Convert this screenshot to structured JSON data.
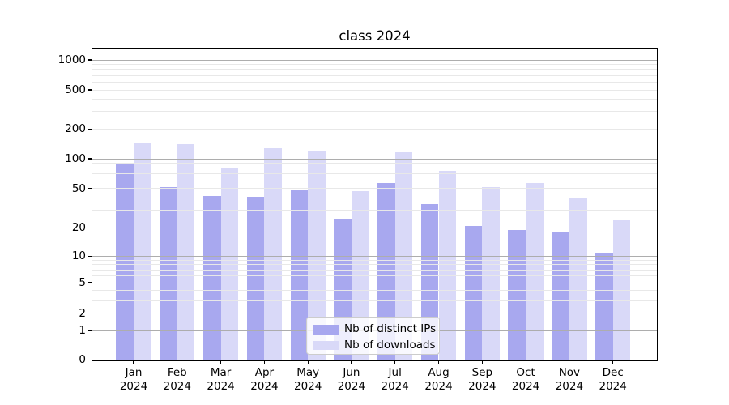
{
  "title": "class 2024",
  "chart_data": {
    "type": "bar",
    "title": "class 2024",
    "categories": [
      "Jan",
      "Feb",
      "Mar",
      "Apr",
      "May",
      "Jun",
      "Jul",
      "Aug",
      "Sep",
      "Oct",
      "Nov",
      "Dec"
    ],
    "category_year": "2024",
    "series": [
      {
        "name": "Nb of distinct IPs",
        "color": "#a8a8ef",
        "values": [
          90,
          52,
          42,
          41,
          48,
          25,
          57,
          35,
          21,
          19,
          18,
          11
        ]
      },
      {
        "name": "Nb of downloads",
        "color": "#d9d9f8",
        "values": [
          146,
          140,
          80,
          129,
          118,
          47,
          116,
          75,
          52,
          57,
          40,
          24
        ]
      }
    ],
    "y_axis": {
      "scale": "symlog",
      "tick_values": [
        0,
        1,
        2,
        5,
        10,
        20,
        50,
        100,
        200,
        500,
        1000
      ],
      "tick_labels": [
        "0",
        "1",
        "2",
        "5",
        "10",
        "20",
        "50",
        "100",
        "200",
        "500",
        "1000"
      ],
      "major_grid_values": [
        1,
        10,
        100,
        1000
      ],
      "minor_grid_values": [
        2,
        3,
        4,
        5,
        6,
        7,
        8,
        9,
        20,
        30,
        40,
        50,
        60,
        70,
        80,
        90,
        200,
        300,
        400,
        500,
        600,
        700,
        800,
        900
      ],
      "range": [
        0,
        1000
      ]
    },
    "xlabel": "",
    "ylabel": "",
    "grid": true,
    "legend": {
      "position": "lower center",
      "entries": [
        "Nb of distinct IPs",
        "Nb of downloads"
      ]
    }
  },
  "colors": {
    "major_grid": "#adadad",
    "minor_grid": "#e8e8e8",
    "spine": "#000000",
    "text": "#000000",
    "legend_border": "#cccccc"
  }
}
